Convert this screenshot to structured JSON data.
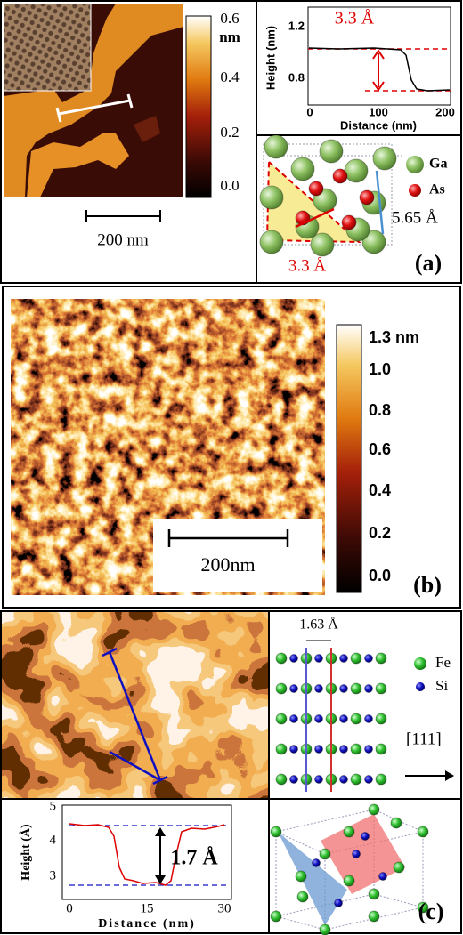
{
  "panels": [
    {
      "label": "(a)",
      "colorbar": {
        "ticks": [
          "0.6",
          "0.4",
          "0.2",
          "0.0"
        ],
        "unit": "nm"
      },
      "scale_bar": "200 nm",
      "profile": {
        "y_label": "Height (nm)",
        "x_label": "Distance (nm)",
        "yticks": [
          "1.2",
          "0.8"
        ],
        "xticks": [
          "0",
          "100",
          "200"
        ],
        "annotation": "3.3 Å"
      },
      "structure": {
        "legend": [
          "Ga",
          "As"
        ],
        "lattice_label": "5.65 Å",
        "spacing_label": "3.3 Å"
      }
    },
    {
      "label": "(b)",
      "colorbar": {
        "top": "1.3 nm",
        "ticks": [
          "1.0",
          "0.8",
          "0.6",
          "0.4",
          "0.2",
          "0.0"
        ]
      },
      "scale_bar": "200nm"
    },
    {
      "label": "(c)",
      "lattice": {
        "spacing_label": "1.63 Å",
        "legend": [
          "Fe",
          "Si"
        ],
        "direction": "[111]"
      },
      "profile": {
        "y_label": "Height (Å)",
        "x_label": "Distance (nm)",
        "yticks": [
          "5",
          "4",
          "3"
        ],
        "xticks": [
          "0",
          "15",
          "30"
        ],
        "annotation": "1.7 Å"
      }
    }
  ]
}
